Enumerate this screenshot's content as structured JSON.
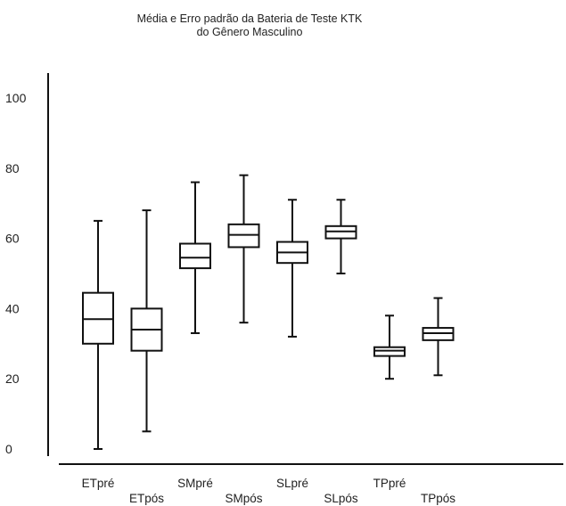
{
  "chart_data": {
    "type": "boxplot",
    "title": [
      "Média e Erro padrão da Bateria de Teste KTK",
      "do Gênero Masculino"
    ],
    "xlabel": "",
    "ylabel": "",
    "ylim": [
      -2,
      105
    ],
    "yticks": [
      0,
      20,
      40,
      60,
      80,
      100
    ],
    "grid": false,
    "legend": "none",
    "categories": [
      "ETpré",
      "ETpós",
      "SMpré",
      "SMpós",
      "SLpré",
      "SLpós",
      "TPpré",
      "TPpós"
    ],
    "boxes": [
      {
        "label": "ETpré",
        "min": 0,
        "q1": 30,
        "median": 37,
        "q3": 44.5,
        "max": 65
      },
      {
        "label": "ETpós",
        "min": 5,
        "q1": 28,
        "median": 34,
        "q3": 40,
        "max": 68
      },
      {
        "label": "SMpré",
        "min": 33,
        "q1": 51.5,
        "median": 54.5,
        "q3": 58.5,
        "max": 76
      },
      {
        "label": "SMpós",
        "min": 36,
        "q1": 57.5,
        "median": 61,
        "q3": 64,
        "max": 78
      },
      {
        "label": "SLpré",
        "min": 32,
        "q1": 53,
        "median": 56,
        "q3": 59,
        "max": 71
      },
      {
        "label": "SLpós",
        "min": 50,
        "q1": 60,
        "median": 62,
        "q3": 63.5,
        "max": 71
      },
      {
        "label": "TPpré",
        "min": 20,
        "q1": 26.5,
        "median": 28,
        "q3": 29,
        "max": 38
      },
      {
        "label": "TPpós",
        "min": 21,
        "q1": 31,
        "median": 33,
        "q3": 34.5,
        "max": 43
      }
    ]
  }
}
